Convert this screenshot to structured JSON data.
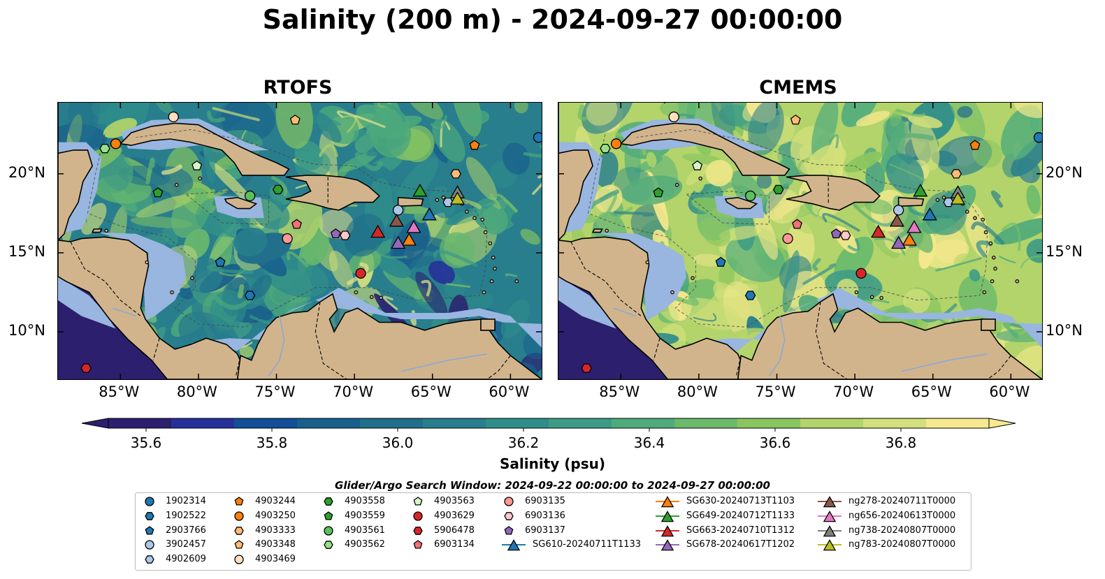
{
  "title": "Salinity (200 m) - 2024-09-27 00:00:00",
  "panels": [
    {
      "title": "RTOFS",
      "model": "rtofs"
    },
    {
      "title": "CMEMS",
      "model": "cmems"
    }
  ],
  "lon_ticks": [
    "85°W",
    "80°W",
    "75°W",
    "70°W",
    "65°W",
    "60°W"
  ],
  "lat_ticks": [
    "20°N",
    "15°N",
    "10°N"
  ],
  "colorbar": {
    "label": "Salinity (psu)",
    "ticks": [
      "35.6",
      "35.8",
      "36.0",
      "36.2",
      "36.4",
      "36.6",
      "36.8"
    ],
    "colors": [
      "#2b1f6e",
      "#26309a",
      "#114f96",
      "#185f8c",
      "#216f8b",
      "#287e8d",
      "#2f8d8b",
      "#3c9b86",
      "#4fab7c",
      "#6bba6c",
      "#89c65f",
      "#b2d46a",
      "#d3e07c",
      "#f7e98f"
    ]
  },
  "search_window": "Glider/Argo Search Window: 2024-09-22 00:00:00 to 2024-09-27 00:00:00",
  "land_color": "#d2b48c",
  "shelf_color": "#98b6e0",
  "legend": [
    {
      "label": "1902314",
      "shape": "circle",
      "color": "#1f77b4"
    },
    {
      "label": "1902522",
      "shape": "hexagon",
      "color": "#1f77b4"
    },
    {
      "label": "2903766",
      "shape": "pentagon",
      "color": "#1f77b4"
    },
    {
      "label": "3902457",
      "shape": "circle",
      "color": "#aec7e8"
    },
    {
      "label": "4902609",
      "shape": "hexagon",
      "color": "#aec7e8"
    },
    {
      "label": "4903244",
      "shape": "pentagon",
      "color": "#ff7f0e"
    },
    {
      "label": "4903250",
      "shape": "circle",
      "color": "#ff7f0e"
    },
    {
      "label": "4903333",
      "shape": "hexagon",
      "color": "#ffbb78"
    },
    {
      "label": "4903348",
      "shape": "pentagon",
      "color": "#ffbb78"
    },
    {
      "label": "4903469",
      "shape": "circle",
      "color": "#ffe0c0"
    },
    {
      "label": "4903558",
      "shape": "hexagon",
      "color": "#2ca02c"
    },
    {
      "label": "4903559",
      "shape": "pentagon",
      "color": "#2ca02c"
    },
    {
      "label": "4903561",
      "shape": "circle",
      "color": "#5cc05c"
    },
    {
      "label": "4903562",
      "shape": "hexagon",
      "color": "#98df8a"
    },
    {
      "label": "4903563",
      "shape": "pentagon",
      "color": "#d8f5c8"
    },
    {
      "label": "4903629",
      "shape": "circle",
      "color": "#d62728"
    },
    {
      "label": "5906478",
      "shape": "hexagon",
      "color": "#d62728"
    },
    {
      "label": "6903134",
      "shape": "pentagon",
      "color": "#f2707a"
    },
    {
      "label": "6903135",
      "shape": "circle",
      "color": "#ff9896"
    },
    {
      "label": "6903136",
      "shape": "hexagon",
      "color": "#ffc8c8"
    },
    {
      "label": "6903137",
      "shape": "pentagon",
      "color": "#9467bd"
    },
    {
      "label": "SG610-20240711T1133",
      "shape": "triangle",
      "color": "#1f77b4"
    },
    {
      "label": "SG630-20240713T1103",
      "shape": "triangle",
      "color": "#ff7f0e"
    },
    {
      "label": "SG649-20240712T1133",
      "shape": "triangle",
      "color": "#2ca02c"
    },
    {
      "label": "SG663-20240710T1312",
      "shape": "triangle",
      "color": "#d62728"
    },
    {
      "label": "SG678-20240617T1202",
      "shape": "triangle",
      "color": "#9467bd"
    },
    {
      "label": "ng278-20240711T0000",
      "shape": "triangle",
      "color": "#8c564b"
    },
    {
      "label": "ng656-20240613T0000",
      "shape": "triangle",
      "color": "#e377c2"
    },
    {
      "label": "ng738-20240807T0000",
      "shape": "triangle",
      "color": "#7f7f7f"
    },
    {
      "label": "ng783-20240807T0000",
      "shape": "triangle",
      "color": "#bcbd22"
    }
  ],
  "markers": [
    {
      "id": "1902314",
      "shape": "circle",
      "color": "#1f77b4",
      "lon": -58.2,
      "lat": 22.3
    },
    {
      "id": "1902522",
      "shape": "hexagon",
      "color": "#1f77b4",
      "lon": -76.7,
      "lat": 12.3
    },
    {
      "id": "2903766",
      "shape": "pentagon",
      "color": "#1f77b4",
      "lon": -78.6,
      "lat": 14.4
    },
    {
      "id": "3902457",
      "shape": "circle",
      "color": "#aec7e8",
      "lon": -67.2,
      "lat": 17.7
    },
    {
      "id": "4902609",
      "shape": "hexagon",
      "color": "#aec7e8",
      "lon": -64.0,
      "lat": 18.2
    },
    {
      "id": "4903244",
      "shape": "pentagon",
      "color": "#ff7f0e",
      "lon": -62.3,
      "lat": 21.8
    },
    {
      "id": "4903250",
      "shape": "circle",
      "color": "#ff7f0e",
      "lon": -85.3,
      "lat": 21.9
    },
    {
      "id": "4903333",
      "shape": "hexagon",
      "color": "#ffbb78",
      "lon": -63.5,
      "lat": 20.0
    },
    {
      "id": "4903348",
      "shape": "pentagon",
      "color": "#ffbb78",
      "lon": -73.8,
      "lat": 23.4
    },
    {
      "id": "4903469",
      "shape": "circle",
      "color": "#ffe0c0",
      "lon": -81.6,
      "lat": 23.6
    },
    {
      "id": "4903558",
      "shape": "hexagon",
      "color": "#2ca02c",
      "lon": -74.9,
      "lat": 19.0
    },
    {
      "id": "4903559",
      "shape": "pentagon",
      "color": "#2ca02c",
      "lon": -82.6,
      "lat": 18.8
    },
    {
      "id": "4903561",
      "shape": "circle",
      "color": "#5cc05c",
      "lon": -76.7,
      "lat": 18.6
    },
    {
      "id": "4903562",
      "shape": "hexagon",
      "color": "#98df8a",
      "lon": -86.0,
      "lat": 21.6
    },
    {
      "id": "4903563",
      "shape": "pentagon",
      "color": "#d8f5c8",
      "lon": -80.1,
      "lat": 20.5
    },
    {
      "id": "4903629",
      "shape": "circle",
      "color": "#d62728",
      "lon": -69.6,
      "lat": 13.7
    },
    {
      "id": "5906478",
      "shape": "hexagon",
      "color": "#d62728",
      "lon": -87.2,
      "lat": 7.7
    },
    {
      "id": "6903134",
      "shape": "pentagon",
      "color": "#f2707a",
      "lon": -73.7,
      "lat": 16.8
    },
    {
      "id": "6903135",
      "shape": "circle",
      "color": "#ff9896",
      "lon": -74.3,
      "lat": 15.9
    },
    {
      "id": "6903136",
      "shape": "hexagon",
      "color": "#ffc8c8",
      "lon": -70.6,
      "lat": 16.1
    },
    {
      "id": "6903137",
      "shape": "pentagon",
      "color": "#9467bd",
      "lon": -71.2,
      "lat": 16.2
    },
    {
      "id": "SG610-20240711T1133",
      "shape": "triangle",
      "color": "#1f77b4",
      "lon": -65.2,
      "lat": 17.4
    },
    {
      "id": "SG630-20240713T1103",
      "shape": "triangle",
      "color": "#ff7f0e",
      "lon": -66.5,
      "lat": 15.8
    },
    {
      "id": "SG649-20240712T1133",
      "shape": "triangle",
      "color": "#2ca02c",
      "lon": -65.8,
      "lat": 18.9
    },
    {
      "id": "SG663-20240710T1312",
      "shape": "triangle",
      "color": "#d62728",
      "lon": -68.5,
      "lat": 16.3
    },
    {
      "id": "SG678-20240617T1202",
      "shape": "triangle",
      "color": "#9467bd",
      "lon": -67.2,
      "lat": 15.6
    },
    {
      "id": "ng278-20240711T0000",
      "shape": "triangle",
      "color": "#8c564b",
      "lon": -67.3,
      "lat": 17.0
    },
    {
      "id": "ng656-20240613T0000",
      "shape": "triangle",
      "color": "#e377c2",
      "lon": -66.2,
      "lat": 16.6
    },
    {
      "id": "ng738-20240807T0000",
      "shape": "triangle",
      "color": "#7f7f7f",
      "lon": -63.4,
      "lat": 18.8
    },
    {
      "id": "ng783-20240807T0000",
      "shape": "triangle",
      "color": "#bcbd22",
      "lon": -63.4,
      "lat": 18.4
    }
  ]
}
